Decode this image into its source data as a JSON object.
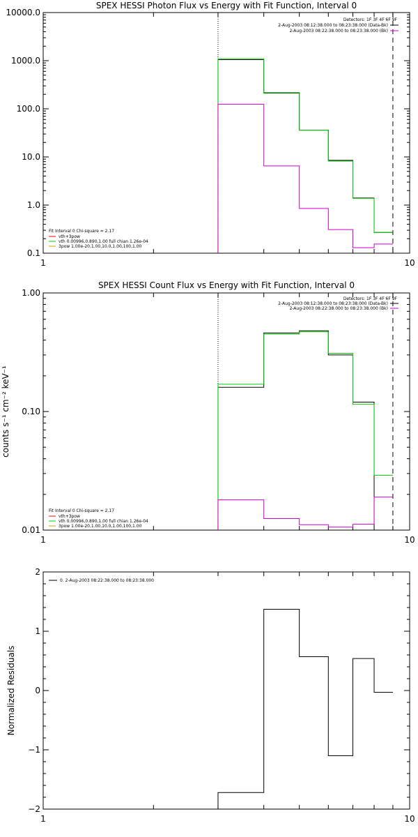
{
  "chart_data": [
    {
      "type": "line",
      "title": "SPEX HESSI Photon Flux vs Energy with Fit Function, Interval 0",
      "xscale": "log",
      "yscale": "log",
      "xlim": [
        1,
        10
      ],
      "ylim": [
        0.1,
        10000
      ],
      "xticks": [
        {
          "v": 1,
          "label": "1"
        },
        {
          "v": 10,
          "label": "10"
        }
      ],
      "yticks": [
        {
          "v": 0.1,
          "label": "0.1"
        },
        {
          "v": 1,
          "label": "1.0"
        },
        {
          "v": 10,
          "label": "10.0"
        },
        {
          "v": 100,
          "label": "100.0"
        },
        {
          "v": 1000,
          "label": "1000.0"
        },
        {
          "v": 10000,
          "label": "10000.0"
        }
      ],
      "vlines": [
        {
          "x": 3,
          "style": "dotted"
        },
        {
          "x": 9,
          "style": "dashed"
        }
      ],
      "legend_top": {
        "position": "top-right",
        "header": "Detectors: 1F 3F 4F 6F 9F",
        "entries": [
          {
            "text": "2-Aug-2003 08:12:38.000 to 08:23:38.000 (Data-Bk)",
            "color": "#000000"
          },
          {
            "text": "2-Aug-2003 08:22:38.000 to 08:23:38.000 (Bk)",
            "color": "#cc00cc"
          }
        ]
      },
      "legend_bottom": {
        "position": "bottom-left",
        "header": "Fit Interval 0   Chi-square = 2.17",
        "entries": [
          {
            "text": "vth+3pow",
            "color": "#ff0000"
          },
          {
            "text": "vth 0.00996,0.890,1.00   full chian 1.26e-04",
            "color": "#00cc00"
          },
          {
            "text": "3pow 1.00e-20,1.00,10.0,1.00,100,1.00",
            "color": "#c8a000"
          }
        ]
      },
      "bin_edges": [
        3,
        4,
        5,
        6,
        7,
        8,
        9
      ],
      "series": [
        {
          "color": "#000000",
          "values": [
            1050,
            215,
            36,
            8.5,
            1.4,
            0.27
          ]
        },
        {
          "color": "#00cc00",
          "values": [
            1100,
            210,
            36,
            8.2,
            1.38,
            0.27
          ]
        },
        {
          "color": "#cc00cc",
          "values": [
            125,
            6.5,
            0.85,
            0.31,
            0.13,
            0.155
          ]
        }
      ]
    },
    {
      "type": "line",
      "title": "SPEX HESSI Count Flux vs Energy with Fit Function, Interval 0",
      "ylabel": "counts s⁻¹ cm⁻² keV⁻¹",
      "xscale": "log",
      "yscale": "log",
      "xlim": [
        1,
        10
      ],
      "ylim": [
        0.01,
        1.0
      ],
      "xticks": [
        {
          "v": 1,
          "label": "1"
        },
        {
          "v": 10,
          "label": "10"
        }
      ],
      "yticks": [
        {
          "v": 0.01,
          "label": "0.01"
        },
        {
          "v": 0.1,
          "label": "0.10"
        },
        {
          "v": 1,
          "label": "1.00"
        }
      ],
      "vlines": [
        {
          "x": 3,
          "style": "dotted"
        },
        {
          "x": 9,
          "style": "dashed"
        }
      ],
      "legend_top": {
        "position": "top-right",
        "header": "Detectors: 1F 3F 4F 6F 9F",
        "entries": [
          {
            "text": "2-Aug-2003 08:12:38.000 to 08:23:38.000 (Data-Bk)",
            "color": "#000000"
          },
          {
            "text": "2-Aug-2003 08:22:38.000 to 08:23:38.000 (Bk)",
            "color": "#cc00cc"
          }
        ]
      },
      "legend_bottom": {
        "position": "bottom-left",
        "header": "Fit Interval 0   Chi-square = 2.17",
        "entries": [
          {
            "text": "vth+3pow",
            "color": "#ff0000"
          },
          {
            "text": "vth 0.00996,0.890,1.00   full chian 1.26e-04",
            "color": "#00cc00"
          },
          {
            "text": "3pow 1.00e-20,1.00,10.0,1.00,100,1.00",
            "color": "#c8a000"
          }
        ]
      },
      "bin_edges": [
        3,
        4,
        5,
        6,
        7,
        8,
        9
      ],
      "series": [
        {
          "color": "#000000",
          "values": [
            0.16,
            0.46,
            0.48,
            0.3,
            0.12,
            0.01
          ]
        },
        {
          "color": "#00cc00",
          "values": [
            0.17,
            0.45,
            0.47,
            0.31,
            0.115,
            0.029
          ]
        },
        {
          "color": "#cc00cc",
          "values": [
            0.018,
            0.0125,
            0.0111,
            0.0106,
            0.0112,
            0.019
          ]
        }
      ]
    },
    {
      "type": "line",
      "title": "",
      "ylabel": "Normalized Residuals",
      "xscale": "log",
      "yscale": "linear",
      "xlim": [
        1,
        10
      ],
      "ylim": [
        -2,
        2
      ],
      "xticks": [
        {
          "v": 1,
          "label": "1"
        },
        {
          "v": 10,
          "label": "10"
        }
      ],
      "yticks": [
        {
          "v": -2,
          "label": "−2"
        },
        {
          "v": -1,
          "label": "−1"
        },
        {
          "v": 0,
          "label": "0"
        },
        {
          "v": 1,
          "label": "1"
        },
        {
          "v": 2,
          "label": "2"
        }
      ],
      "vlines": [],
      "legend_top": {
        "position": "top-left",
        "header": "",
        "entries": [
          {
            "text": "0.  2-Aug-2003 08:22:38.000 to 08:23:38.000",
            "color": "#000000"
          }
        ]
      },
      "bin_edges": [
        3,
        4,
        5,
        6,
        7,
        8,
        9
      ],
      "series": [
        {
          "color": "#000000",
          "values": [
            -1.72,
            1.37,
            0.57,
            -1.1,
            0.54,
            -0.03
          ]
        }
      ]
    }
  ]
}
